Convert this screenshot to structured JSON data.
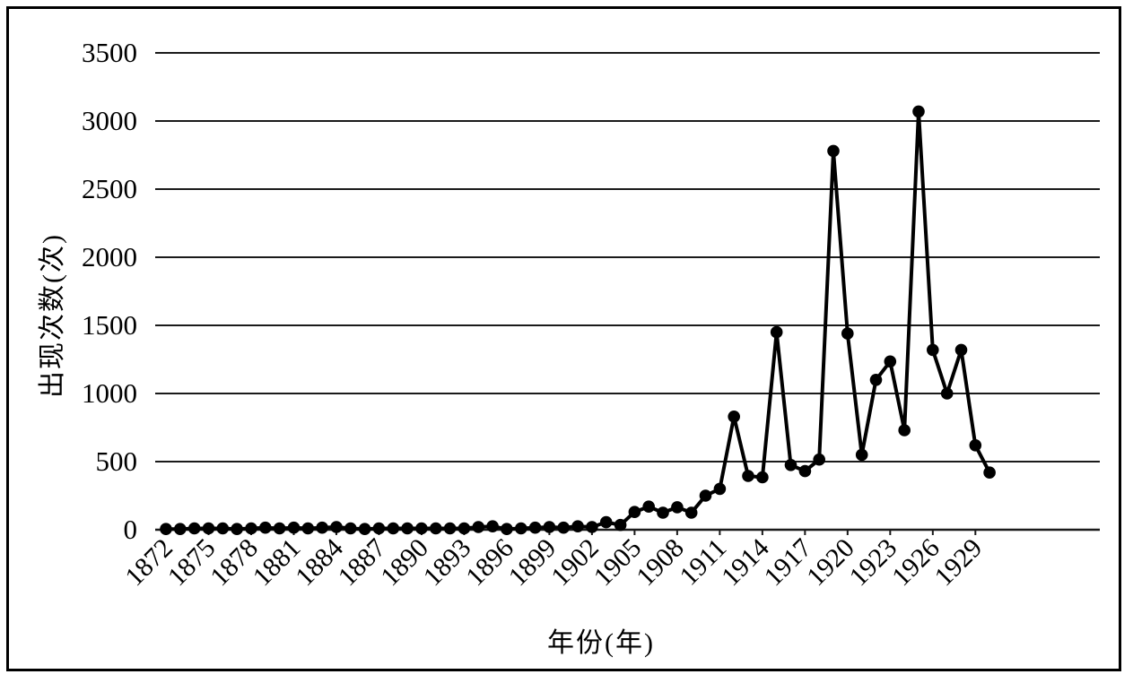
{
  "figure": {
    "background": "#ffffff",
    "border_color": "#000000",
    "series_color": "#000000",
    "gridline_color": "#1a1a1a"
  },
  "chart_data": {
    "type": "line",
    "title": "",
    "xlabel": "年份(年)",
    "ylabel": "出现次数(次)",
    "legend": "none",
    "grid": "horizontal",
    "marker": "circle",
    "ylim": [
      0,
      3500
    ],
    "y_ticks": [
      0,
      500,
      1000,
      1500,
      2000,
      2500,
      3000,
      3500
    ],
    "x_tick_step": 3,
    "x_tick_labels": [
      "1872",
      "1875",
      "1878",
      "1881",
      "1884",
      "1887",
      "1890",
      "1893",
      "1896",
      "1899",
      "1902",
      "1905",
      "1908",
      "1911",
      "1914",
      "1917",
      "1920",
      "1923",
      "1926",
      "1929"
    ],
    "x": [
      1872,
      1873,
      1874,
      1875,
      1876,
      1877,
      1878,
      1879,
      1880,
      1881,
      1882,
      1883,
      1884,
      1885,
      1886,
      1887,
      1888,
      1889,
      1890,
      1891,
      1892,
      1893,
      1894,
      1895,
      1896,
      1897,
      1898,
      1899,
      1900,
      1901,
      1902,
      1903,
      1904,
      1905,
      1906,
      1907,
      1908,
      1909,
      1910,
      1911,
      1912,
      1913,
      1914,
      1915,
      1916,
      1917,
      1918,
      1919,
      1920,
      1921,
      1922,
      1923,
      1924,
      1925,
      1926,
      1927,
      1928,
      1929,
      1930
    ],
    "values": [
      5,
      5,
      10,
      10,
      10,
      5,
      10,
      15,
      10,
      15,
      10,
      15,
      20,
      10,
      5,
      10,
      10,
      10,
      10,
      10,
      10,
      10,
      20,
      25,
      5,
      10,
      15,
      20,
      15,
      25,
      20,
      55,
      35,
      130,
      170,
      125,
      165,
      125,
      250,
      300,
      830,
      395,
      385,
      1450,
      475,
      430,
      515,
      2780,
      1440,
      550,
      1100,
      1235,
      730,
      3070,
      1320,
      1000,
      1320,
      620,
      420
    ]
  }
}
